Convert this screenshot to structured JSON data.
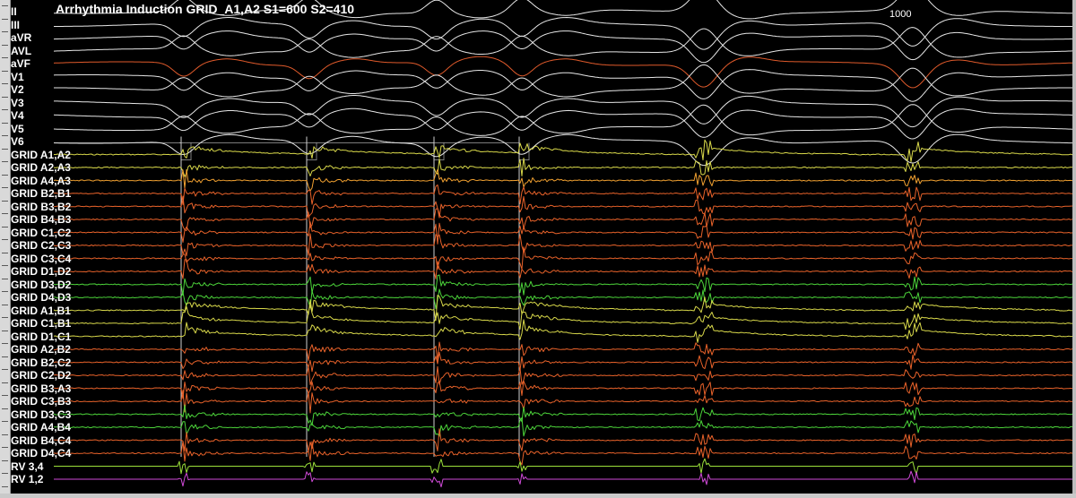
{
  "title": "Arrhythmia Induction GRID_A1,A2 S1=600 S2=410",
  "interval_marker": "1000",
  "channels": [
    {
      "label": "II",
      "color": "#e6e6e6"
    },
    {
      "label": "III",
      "color": "#e6e6e6"
    },
    {
      "label": "aVR",
      "color": "#e6e6e6"
    },
    {
      "label": "AVL",
      "color": "#e6e6e6"
    },
    {
      "label": "aVF",
      "color": "#e05a2b"
    },
    {
      "label": "V1",
      "color": "#e6e6e6"
    },
    {
      "label": "V2",
      "color": "#e6e6e6"
    },
    {
      "label": "V3",
      "color": "#e6e6e6"
    },
    {
      "label": "V4",
      "color": "#e6e6e6"
    },
    {
      "label": "V5",
      "color": "#e6e6e6"
    },
    {
      "label": "V6",
      "color": "#e6e6e6"
    },
    {
      "label": "GRID A1,A2",
      "color": "#d8d84a"
    },
    {
      "label": "GRID A2,A3",
      "color": "#d8d84a"
    },
    {
      "label": "GRID A4,A3",
      "color": "#f0a030"
    },
    {
      "label": "GRID B2,B1",
      "color": "#e8622a"
    },
    {
      "label": "GRID B3,B2",
      "color": "#e8622a"
    },
    {
      "label": "GRID B4,B3",
      "color": "#e8622a"
    },
    {
      "label": "GRID C1,C2",
      "color": "#e8622a"
    },
    {
      "label": "GRID C2,C3",
      "color": "#e8622a"
    },
    {
      "label": "GRID C3,C4",
      "color": "#e8622a"
    },
    {
      "label": "GRID D1,D2",
      "color": "#e8622a"
    },
    {
      "label": "GRID D3,D2",
      "color": "#4cd43a"
    },
    {
      "label": "GRID D4,D3",
      "color": "#4cd43a"
    },
    {
      "label": "GRID A1,B1",
      "color": "#d8d84a"
    },
    {
      "label": "GRID C1,B1",
      "color": "#d8d84a"
    },
    {
      "label": "GRID D1,C1",
      "color": "#d8d84a"
    },
    {
      "label": "GRID A2,B2",
      "color": "#e8622a"
    },
    {
      "label": "GRID B2,C2",
      "color": "#e8622a"
    },
    {
      "label": "GRID C2,D2",
      "color": "#e8622a"
    },
    {
      "label": "GRID B3,A3",
      "color": "#e8622a"
    },
    {
      "label": "GRID C3,B3",
      "color": "#e8622a"
    },
    {
      "label": "GRID D3,C3",
      "color": "#4cd43a"
    },
    {
      "label": "GRID A4,B4",
      "color": "#4cd43a"
    },
    {
      "label": "GRID B4,C4",
      "color": "#e8622a"
    },
    {
      "label": "GRID D4,C4",
      "color": "#e8622a"
    },
    {
      "label": "RV 3,4",
      "color": "#9be03a"
    },
    {
      "label": "RV 1,2",
      "color": "#d04ad8"
    }
  ],
  "colors": {
    "background": "#000000",
    "stim_marker": "#e6e6e6",
    "ruler": "#d9d9d9"
  }
}
